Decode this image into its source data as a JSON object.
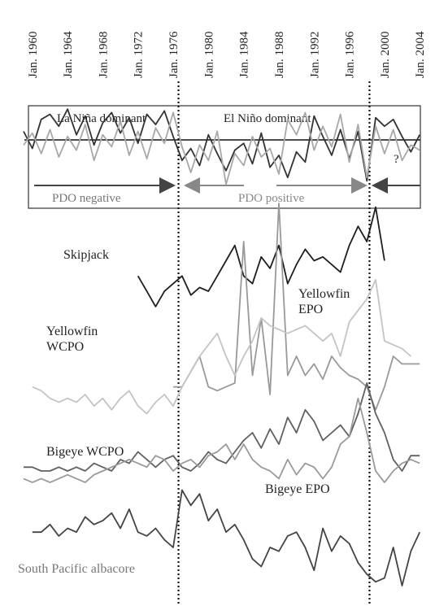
{
  "chart_data": [
    {
      "type": "line",
      "annotations": [
        "La Niña dominant",
        "El Niño dominant",
        "PDO negative",
        "PDO positive",
        "?"
      ],
      "x": [
        1959,
        1960,
        1961,
        1962,
        1963,
        1964,
        1965,
        1966,
        1967,
        1968,
        1969,
        1970,
        1971,
        1972,
        1973,
        1974,
        1975,
        1976,
        1977,
        1978,
        1979,
        1980,
        1981,
        1982,
        1983,
        1984,
        1985,
        1986,
        1987,
        1988,
        1989,
        1990,
        1991,
        1992,
        1993,
        1994,
        1995,
        1996,
        1997,
        1998,
        1999,
        2000,
        2001,
        2002,
        2003,
        2004
      ],
      "xlim": [
        1959,
        2005
      ],
      "xticks": [
        {
          "value": 1960,
          "label": "Jan. 1960"
        },
        {
          "value": 1964,
          "label": "Jan. 1964"
        },
        {
          "value": 1968,
          "label": "Jan. 1968"
        },
        {
          "value": 1972,
          "label": "Jan. 1972"
        },
        {
          "value": 1976,
          "label": "Jan. 1976"
        },
        {
          "value": 1980,
          "label": "Jan. 1980"
        },
        {
          "value": 1984,
          "label": "Jan. 1984"
        },
        {
          "value": 1988,
          "label": "Jan. 1988"
        },
        {
          "value": 1992,
          "label": "Jan. 1992"
        },
        {
          "value": 1996,
          "label": "Jan. 1996"
        },
        {
          "value": 2000,
          "label": "Jan. 2000"
        },
        {
          "value": 2004,
          "label": "Jan. 2004"
        }
      ],
      "ylim": [
        -4,
        2
      ],
      "vlines": [
        1976.6,
        1998.3
      ],
      "series": [
        {
          "color": "#333333",
          "values": [
            0.5,
            -0.5,
            1.2,
            1.5,
            0.8,
            1.8,
            0.3,
            1.4,
            -0.3,
            1.0,
            1.6,
            0.4,
            1.3,
            -0.2,
            1.5,
            0.9,
            1.7,
            0.2,
            -1.2,
            -0.5,
            -1.5,
            0.3,
            -0.8,
            -1.8,
            -0.6,
            -0.2,
            -1.4,
            0.4,
            -1.6,
            -0.9,
            -2.2,
            -0.7,
            -1.3,
            1.4,
            0.2,
            -0.9,
            0.6,
            -1.1,
            0.5,
            -2.4,
            1.3,
            0.8,
            1.2,
            0.2,
            -0.7,
            0.3
          ]
        },
        {
          "color": "#a8a8a8",
          "values": [
            -0.3,
            0.4,
            -0.8,
            0.6,
            -1.0,
            0.2,
            -0.6,
            0.9,
            -1.2,
            0.3,
            -0.4,
            1.1,
            -0.9,
            0.5,
            -1.1,
            0.7,
            -0.2,
            1.6,
            -0.4,
            -1.9,
            -0.3,
            -1.2,
            0.5,
            -2.6,
            -0.8,
            -1.5,
            0.2,
            -1.0,
            -0.5,
            -2.0,
            1.2,
            0.3,
            1.6,
            -0.6,
            0.8,
            -0.4,
            1.5,
            -1.3,
            0.9,
            -2.2,
            0.8,
            -0.8,
            0.6,
            -1.2,
            -0.3,
            -0.6
          ]
        }
      ]
    },
    {
      "type": "line",
      "x": [
        1959,
        1960,
        1961,
        1962,
        1963,
        1964,
        1965,
        1966,
        1967,
        1968,
        1969,
        1970,
        1971,
        1972,
        1973,
        1974,
        1975,
        1976,
        1977,
        1978,
        1979,
        1980,
        1981,
        1982,
        1983,
        1984,
        1985,
        1986,
        1987,
        1988,
        1989,
        1990,
        1991,
        1992,
        1993,
        1994,
        1995,
        1996,
        1997,
        1998,
        1999,
        2000,
        2001,
        2002,
        2003,
        2004
      ],
      "xlim": [
        1959,
        2005
      ],
      "ylim": [
        0,
        100
      ],
      "series": [
        {
          "name": "Skipjack",
          "color": "#1e1e1e",
          "values": [
            null,
            null,
            null,
            null,
            null,
            null,
            null,
            null,
            null,
            null,
            null,
            null,
            null,
            81,
            77,
            73,
            77,
            79,
            81,
            76,
            78,
            77,
            81,
            85,
            89,
            81,
            79,
            86,
            83,
            89,
            79,
            84,
            88,
            85,
            86,
            84,
            82,
            89,
            94,
            90,
            99,
            85,
            null,
            null,
            null,
            null
          ]
        },
        {
          "name": "Yellowfin EPO",
          "color": "#999999",
          "values": [
            null,
            null,
            null,
            null,
            null,
            null,
            null,
            null,
            null,
            null,
            null,
            null,
            null,
            null,
            null,
            null,
            null,
            52,
            52,
            56,
            60,
            52,
            51,
            52,
            53,
            90,
            55,
            70,
            50,
            100,
            55,
            60,
            55,
            58,
            54,
            60,
            57,
            55,
            54,
            52,
            46,
            52,
            60,
            58,
            58,
            58
          ]
        },
        {
          "name": "Yellowfin WCPO",
          "color": "#c4c4c4",
          "values": [
            null,
            52,
            51,
            49,
            48,
            49,
            48,
            50,
            47,
            49,
            46,
            49,
            51,
            47,
            45,
            48,
            50,
            47,
            52,
            56,
            60,
            63,
            66,
            60,
            55,
            60,
            64,
            70,
            68,
            67,
            66,
            67,
            68,
            66,
            64,
            66,
            60,
            69,
            72,
            75,
            80,
            64,
            63,
            62,
            60,
            null
          ]
        },
        {
          "name": "Bigeye WCPO",
          "color": "#606060",
          "values": [
            31,
            31,
            30,
            30,
            31,
            30,
            31,
            30,
            32,
            31,
            30,
            33,
            32,
            35,
            33,
            31,
            33,
            34,
            31,
            30,
            32,
            35,
            33,
            32,
            35,
            38,
            40,
            36,
            41,
            37,
            44,
            40,
            46,
            43,
            38,
            40,
            42,
            39,
            45,
            53,
            45,
            40,
            33,
            30,
            34,
            34
          ]
        },
        {
          "name": "Bigeye EPO",
          "color": "#9a9a9a",
          "values": [
            28,
            27,
            28,
            27,
            28,
            29,
            28,
            27,
            29,
            30,
            31,
            32,
            33,
            32,
            31,
            34,
            33,
            30,
            32,
            33,
            31,
            34,
            35,
            37,
            33,
            37,
            33,
            31,
            30,
            28,
            33,
            29,
            32,
            31,
            28,
            31,
            37,
            39,
            49,
            40,
            30,
            27,
            30,
            32,
            33,
            32
          ]
        },
        {
          "name": "South Pacific albacore",
          "color": "#444444",
          "values": [
            null,
            14,
            14,
            16,
            13,
            15,
            14,
            18,
            16,
            17,
            19,
            15,
            20,
            14,
            13,
            15,
            12,
            10,
            25,
            21,
            24,
            17,
            20,
            14,
            16,
            12,
            7,
            5,
            10,
            9,
            13,
            14,
            10,
            4,
            15,
            9,
            13,
            11,
            6,
            3,
            1,
            2,
            10,
            0,
            9,
            14
          ]
        }
      ]
    }
  ]
}
